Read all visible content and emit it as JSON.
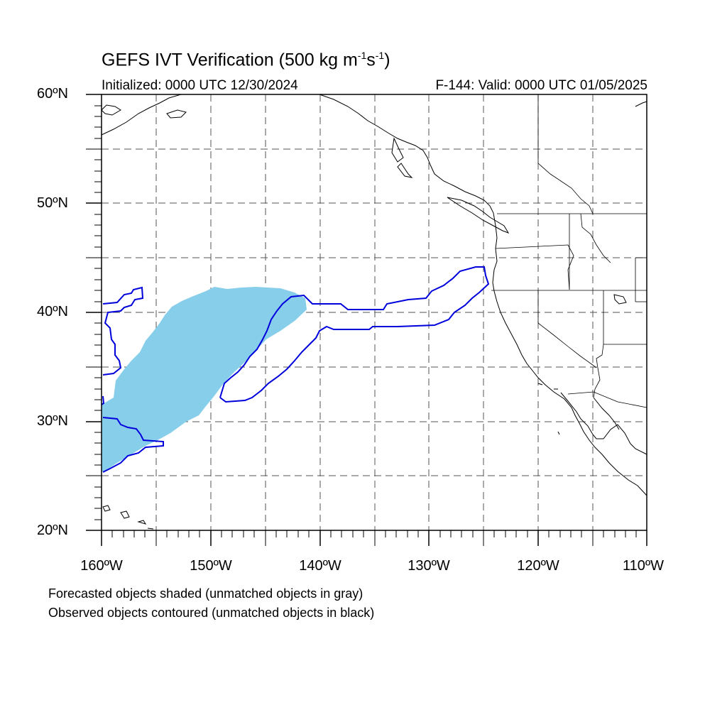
{
  "header": {
    "title_prefix": "GEFS IVT Verification (500 kg m",
    "title_exp1": "-1",
    "title_mid": "s",
    "title_exp2": "-1",
    "title_suffix": ")",
    "initialized": "Initialized: 0000 UTC 12/30/2024",
    "valid": "F-144: Valid: 0000 UTC 01/05/2025"
  },
  "map": {
    "lon_range": [
      -160,
      -110
    ],
    "lat_range": [
      20,
      60
    ],
    "gridlines": "dashed every 5°",
    "lat_labels": [
      "60ºN",
      "50ºN",
      "40ºN",
      "30ºN",
      "20ºN"
    ],
    "lon_labels": [
      "160ºW",
      "150ºW",
      "140ºW",
      "130ºW",
      "120ºW",
      "110ºW"
    ],
    "colors": {
      "forecast_fill": "#87ceeb",
      "observed_contour": "#0000dd",
      "coastline": "#000000",
      "grid": "#555555"
    }
  },
  "footer": {
    "line1": "Forecasted objects shaded (unmatched objects in gray)",
    "line2": "Observed objects contoured (unmatched objects in black)"
  }
}
